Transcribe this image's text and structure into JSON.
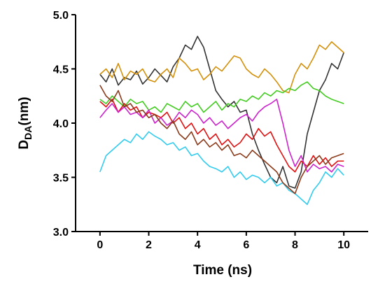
{
  "chart_data": {
    "type": "line",
    "x_label": "Time (ns)",
    "y_label": {
      "main": "D",
      "sub": "DA",
      "rest": "(nm)"
    },
    "xlim": [
      -1,
      11
    ],
    "ylim": [
      3,
      5
    ],
    "xticks": [
      0,
      2,
      4,
      6,
      8,
      10
    ],
    "yticks": [
      {
        "value": 3,
        "label": "3.0"
      },
      3.5,
      {
        "value": 4,
        "label": "4.0"
      },
      4.5,
      {
        "value": 5,
        "label": "5.0"
      }
    ],
    "x": [
      0,
      0.25,
      0.5,
      0.75,
      1,
      1.25,
      1.5,
      1.75,
      2,
      2.25,
      2.5,
      2.75,
      3,
      3.25,
      3.5,
      3.75,
      4,
      4.25,
      4.5,
      4.75,
      5,
      5.25,
      5.5,
      5.75,
      6,
      6.25,
      6.5,
      6.75,
      7,
      7.25,
      7.5,
      7.75,
      8,
      8.25,
      8.5,
      8.75,
      9,
      9.25,
      9.5,
      9.75,
      10
    ],
    "series": [
      {
        "color": "#333333",
        "values": [
          4.45,
          4.38,
          4.5,
          4.35,
          4.42,
          4.4,
          4.48,
          4.36,
          4.42,
          4.5,
          4.44,
          4.38,
          4.52,
          4.6,
          4.72,
          4.68,
          4.8,
          4.7,
          4.5,
          4.3,
          4.22,
          4.15,
          4.2,
          4.1,
          4.12,
          3.9,
          3.75,
          3.62,
          3.5,
          3.45,
          3.6,
          3.42,
          3.4,
          3.55,
          3.9,
          4.1,
          4.3,
          4.4,
          4.55,
          4.5,
          4.65
        ]
      },
      {
        "color": "#d4900a",
        "values": [
          4.45,
          4.5,
          4.42,
          4.55,
          4.4,
          4.48,
          4.45,
          4.5,
          4.4,
          4.38,
          4.45,
          4.5,
          4.42,
          4.6,
          4.55,
          4.48,
          4.5,
          4.4,
          4.45,
          4.52,
          4.48,
          4.55,
          4.62,
          4.6,
          4.5,
          4.45,
          4.42,
          4.5,
          4.45,
          4.38,
          4.3,
          4.28,
          4.45,
          4.55,
          4.5,
          4.6,
          4.72,
          4.68,
          4.75,
          4.7,
          4.65
        ]
      },
      {
        "color": "#44cc22",
        "values": [
          4.22,
          4.18,
          4.25,
          4.2,
          4.15,
          4.22,
          4.18,
          4.2,
          4.12,
          4.15,
          4.1,
          4.18,
          4.15,
          4.12,
          4.2,
          4.15,
          4.18,
          4.1,
          4.15,
          4.2,
          4.12,
          4.18,
          4.15,
          4.22,
          4.2,
          4.25,
          4.22,
          4.28,
          4.25,
          4.3,
          4.28,
          4.32,
          4.3,
          4.35,
          4.38,
          4.32,
          4.3,
          4.25,
          4.22,
          4.2,
          4.18
        ]
      },
      {
        "color": "#e01010",
        "values": [
          4.2,
          4.15,
          4.22,
          4.1,
          4.18,
          4.12,
          4.15,
          4.05,
          4.1,
          4.08,
          4.05,
          4.1,
          4.0,
          4.05,
          3.95,
          4.0,
          3.9,
          3.95,
          3.85,
          3.9,
          3.8,
          3.85,
          3.78,
          3.82,
          3.9,
          3.85,
          3.95,
          3.88,
          3.92,
          3.8,
          3.7,
          3.6,
          3.55,
          3.65,
          3.6,
          3.7,
          3.62,
          3.68,
          3.6,
          3.65,
          3.65
        ]
      },
      {
        "color": "#cc22cc",
        "values": [
          4.05,
          4.12,
          4.18,
          4.1,
          4.15,
          4.08,
          4.1,
          4.05,
          4.12,
          4.0,
          4.05,
          3.98,
          4.02,
          4.1,
          4.05,
          4.12,
          4.08,
          4.0,
          4.05,
          3.98,
          4.02,
          3.95,
          4.0,
          4.05,
          4.08,
          4.02,
          4.1,
          4.15,
          4.18,
          4.22,
          4.0,
          3.75,
          3.6,
          3.7,
          3.55,
          3.62,
          3.58,
          3.6,
          3.55,
          3.62,
          3.6
        ]
      },
      {
        "color": "#33ccee",
        "values": [
          3.55,
          3.7,
          3.75,
          3.8,
          3.85,
          3.82,
          3.9,
          3.85,
          3.92,
          3.88,
          3.85,
          3.8,
          3.82,
          3.75,
          3.78,
          3.7,
          3.72,
          3.65,
          3.6,
          3.58,
          3.55,
          3.6,
          3.5,
          3.55,
          3.48,
          3.52,
          3.5,
          3.45,
          3.5,
          3.42,
          3.45,
          3.38,
          3.35,
          3.3,
          3.25,
          3.38,
          3.45,
          3.55,
          3.5,
          3.58,
          3.52
        ]
      },
      {
        "color": "#8b3a1a",
        "values": [
          4.35,
          4.25,
          4.2,
          4.3,
          4.15,
          4.18,
          4.1,
          4.12,
          4.05,
          4.08,
          4.0,
          3.95,
          4.02,
          3.9,
          3.85,
          3.92,
          3.8,
          3.85,
          3.78,
          3.82,
          3.75,
          3.8,
          3.7,
          3.72,
          3.68,
          3.75,
          3.7,
          3.65,
          3.6,
          3.55,
          3.45,
          3.4,
          3.35,
          3.5,
          3.6,
          3.65,
          3.7,
          3.62,
          3.68,
          3.7,
          3.72
        ]
      }
    ]
  }
}
